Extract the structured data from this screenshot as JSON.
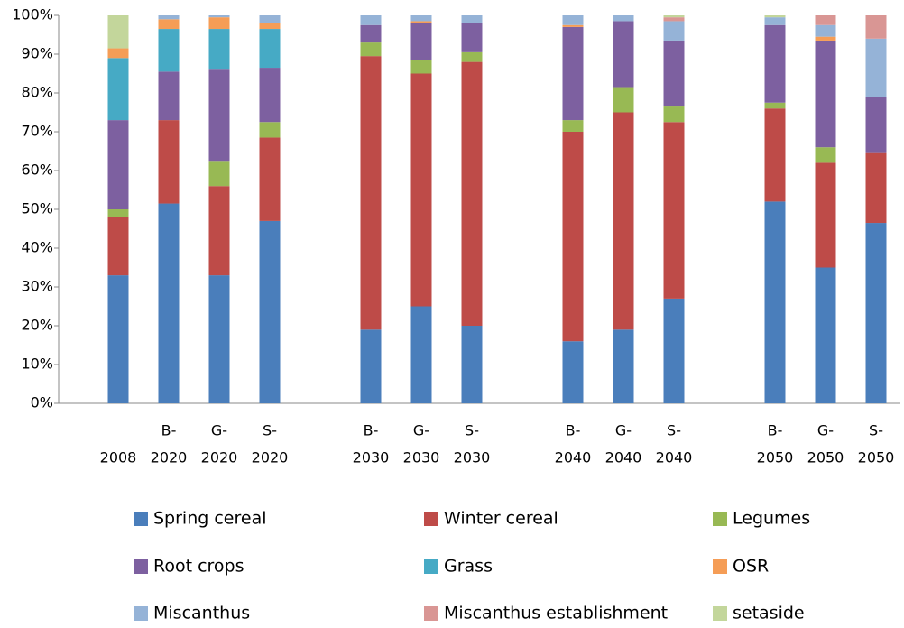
{
  "chart_data": {
    "type": "stacked_bar",
    "categories": [
      [
        "2008"
      ],
      [
        "B-",
        "2020"
      ],
      [
        "G-",
        "2020"
      ],
      [
        "S-",
        "2020"
      ],
      null,
      [
        "B-",
        "2030"
      ],
      [
        "G-",
        "2030"
      ],
      [
        "S-",
        "2030"
      ],
      null,
      [
        "B-",
        "2040"
      ],
      [
        "G-",
        "2040"
      ],
      [
        "S-",
        "2040"
      ],
      null,
      [
        "B-",
        "2050"
      ],
      [
        "G-",
        "2050"
      ],
      [
        "S-",
        "2050"
      ]
    ],
    "series": [
      {
        "name": "Spring cereal",
        "color": "#4a7ebb",
        "values": [
          33,
          51.5,
          33,
          47,
          null,
          19,
          25,
          20,
          null,
          16,
          19,
          27,
          null,
          52,
          35,
          46.5
        ]
      },
      {
        "name": "Winter cereal",
        "color": "#be4b48",
        "values": [
          15,
          21.5,
          23,
          21.5,
          null,
          70.5,
          60,
          68,
          null,
          54,
          56,
          45.5,
          null,
          24,
          27,
          18
        ]
      },
      {
        "name": "Legumes",
        "color": "#98b954",
        "values": [
          2,
          0,
          6.5,
          4,
          null,
          3.5,
          3.5,
          2.5,
          null,
          3,
          6.5,
          4,
          null,
          1.5,
          4,
          0
        ]
      },
      {
        "name": "Root crops",
        "color": "#7d60a0",
        "values": [
          23,
          12.5,
          23.5,
          14,
          null,
          4.5,
          9.5,
          7.5,
          null,
          24,
          17,
          17,
          null,
          20,
          27.5,
          14.5
        ]
      },
      {
        "name": "Grass",
        "color": "#46aac5",
        "values": [
          16,
          11,
          10.5,
          10,
          null,
          0,
          0,
          0,
          null,
          0,
          0,
          0,
          null,
          0,
          0,
          0
        ]
      },
      {
        "name": "OSR",
        "color": "#f59d56",
        "values": [
          2.5,
          2.5,
          3,
          1.5,
          null,
          0,
          0.5,
          0,
          null,
          0.5,
          0,
          0,
          null,
          0,
          1,
          0
        ]
      },
      {
        "name": "Miscanthus",
        "color": "#95b3d7",
        "values": [
          0,
          1,
          0.5,
          2,
          null,
          2.5,
          1.5,
          2,
          null,
          2.5,
          1.5,
          5,
          null,
          2,
          3,
          15
        ]
      },
      {
        "name": "Miscanthus establishment",
        "color": "#d99694",
        "values": [
          0,
          0,
          0,
          0,
          null,
          0,
          0,
          0,
          null,
          0,
          0,
          1,
          null,
          0,
          2.5,
          6
        ]
      },
      {
        "name": "setaside",
        "color": "#c3d69b",
        "values": [
          8.5,
          0,
          0,
          0,
          null,
          0,
          0,
          0,
          null,
          0,
          0,
          0.5,
          null,
          0.5,
          0,
          0
        ]
      }
    ],
    "ylim": [
      0,
      100
    ],
    "yticks": [
      {
        "value": 0,
        "label": "0%"
      },
      {
        "value": 10,
        "label": "10%"
      },
      {
        "value": 20,
        "label": "20%"
      },
      {
        "value": 30,
        "label": "30%"
      },
      {
        "value": 40,
        "label": "40%"
      },
      {
        "value": 50,
        "label": "50%"
      },
      {
        "value": 60,
        "label": "60%"
      },
      {
        "value": 70,
        "label": "70%"
      },
      {
        "value": 80,
        "label": "80%"
      },
      {
        "value": 90,
        "label": "90%"
      },
      {
        "value": 100,
        "label": "100%"
      }
    ],
    "legend": "bottom"
  }
}
